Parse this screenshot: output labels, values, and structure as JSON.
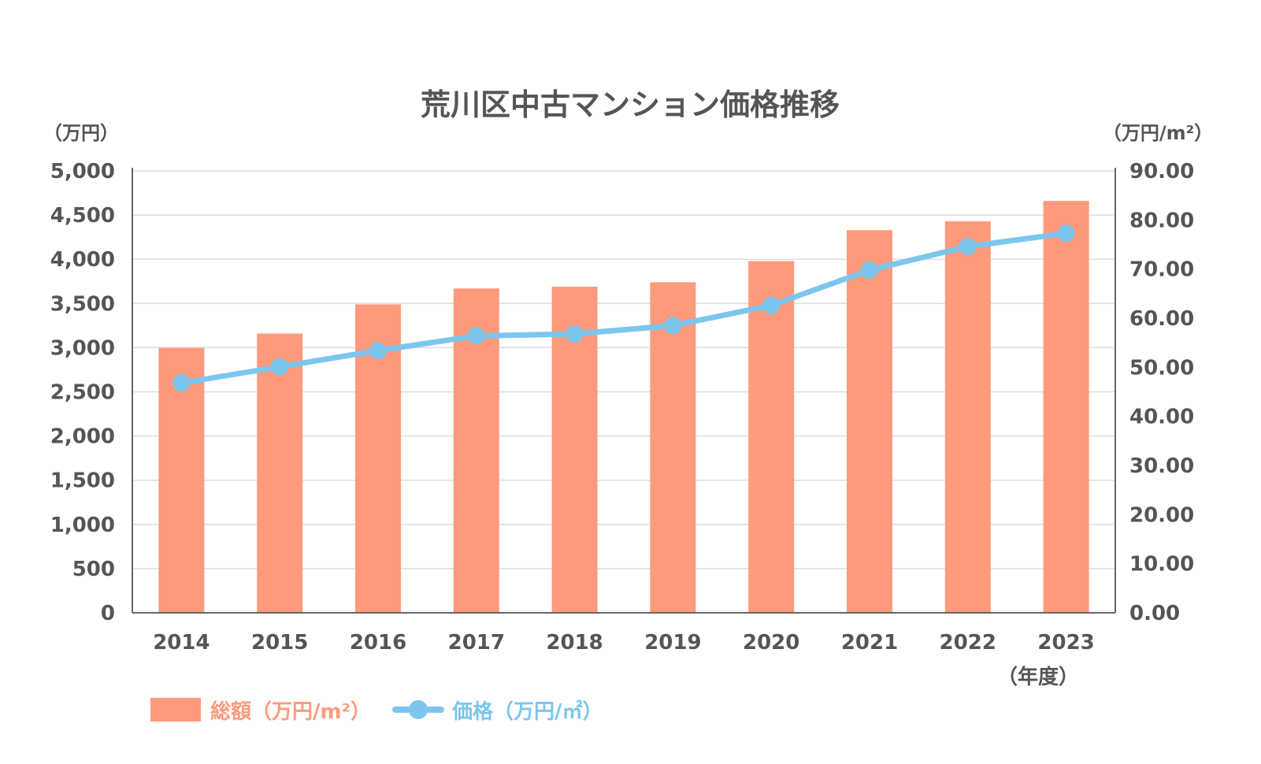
{
  "chart_data": {
    "type": "bar",
    "title": "荒川区中古マンション価格推移",
    "ylabel": "（万円）",
    "y2label": "（万円/m²）",
    "xunit": "（年度）",
    "categories": [
      "2014",
      "2015",
      "2016",
      "2017",
      "2018",
      "2019",
      "2020",
      "2021",
      "2022",
      "2023"
    ],
    "ylim": [
      0,
      5000
    ],
    "y_ticks": [
      "0",
      "500",
      "1,000",
      "1,500",
      "2,000",
      "2,500",
      "3,000",
      "3,500",
      "4,000",
      "4,500",
      "5,000"
    ],
    "y2lim": [
      0,
      90
    ],
    "y2_ticks": [
      "0.00",
      "10.00",
      "20.00",
      "30.00",
      "40.00",
      "50.00",
      "60.00",
      "70.00",
      "80.00",
      "90.00"
    ],
    "grid": true,
    "legend_position": "bottom-left",
    "series": [
      {
        "name": "総額（万円/m²）",
        "type": "bar",
        "axis": "left",
        "color": "#FF9A7C",
        "values": [
          3000,
          3160,
          3490,
          3670,
          3690,
          3740,
          3980,
          4330,
          4430,
          4660
        ]
      },
      {
        "name": "価格（万円/㎡）",
        "type": "line",
        "axis": "right",
        "color": "#7CC6EE",
        "values": [
          46.8,
          50.1,
          53.4,
          56.4,
          56.8,
          58.5,
          62.6,
          69.8,
          74.6,
          77.3
        ]
      }
    ]
  }
}
